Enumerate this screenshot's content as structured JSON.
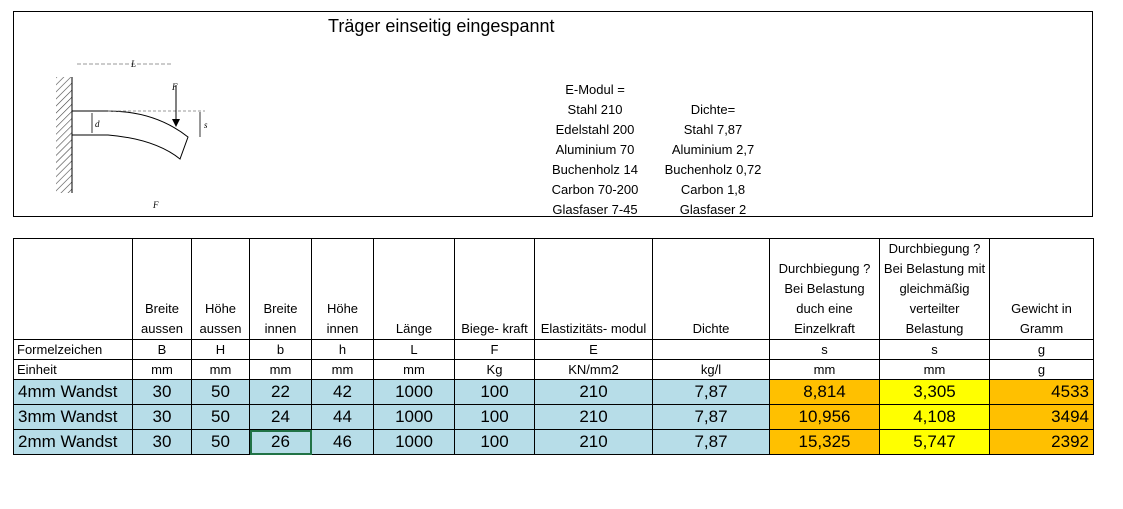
{
  "title": "Träger einseitig eingespannt",
  "diagram": {
    "labels": {
      "L": "L",
      "F": "F",
      "d": "d",
      "s": "s",
      "F_bottom": "F"
    }
  },
  "e_modul": {
    "heading": "E-Modul =",
    "lines": [
      "Stahl 210",
      "Edelstahl 200",
      "Aluminium 70",
      "Buchenholz 14",
      "Carbon 70-200",
      "Glasfaser 7-45"
    ]
  },
  "dichte": {
    "heading": "Dichte=",
    "lines": [
      "Stahl 7,87",
      "Aluminium  2,7",
      "Buchenholz 0,72",
      "Carbon 1,8",
      "Glasfaser 2"
    ]
  },
  "table": {
    "headers": {
      "breite_aussen": "Breite aussen",
      "hoehe_aussen": "Höhe aussen",
      "breite_innen": "Breite innen",
      "hoehe_innen": "Höhe innen",
      "laenge": "Länge",
      "biegekraft": "Biege- kraft",
      "emodul": "Elastizitäts- modul",
      "dichte": "Dichte",
      "durchbiegung_einzel": "Durchbiegung ? Bei Belastung duch eine Einzelkraft",
      "durchbiegung_verteilt": "Durchbiegung ? Bei Belastung mit gleichmäßig verteilter Belastung",
      "gewicht": "Gewicht in Gramm"
    },
    "formel": [
      "Formelzeichen",
      "B",
      "H",
      "b",
      "h",
      "L",
      "F",
      "E",
      "",
      "s",
      "s",
      "g"
    ],
    "einheit": [
      "Einheit",
      "mm",
      "mm",
      "mm",
      "mm",
      "mm",
      "Kg",
      "KN/mm2",
      "kg/l",
      "mm",
      "mm",
      "g"
    ],
    "rows": [
      [
        "4mm Wandst",
        "30",
        "50",
        "22",
        "42",
        "1000",
        "100",
        "210",
        "7,87",
        "8,814",
        "3,305",
        "4533"
      ],
      [
        "3mm Wandst",
        "30",
        "50",
        "24",
        "44",
        "1000",
        "100",
        "210",
        "7,87",
        "10,956",
        "4,108",
        "3494"
      ],
      [
        "2mm Wandst",
        "30",
        "50",
        "26",
        "46",
        "1000",
        "100",
        "210",
        "7,87",
        "15,325",
        "5,747",
        "2392"
      ]
    ]
  },
  "colors": {
    "blue": "#b7dde8",
    "orange": "#ffc000",
    "yellow": "#ffff00",
    "selection": "#217346"
  }
}
